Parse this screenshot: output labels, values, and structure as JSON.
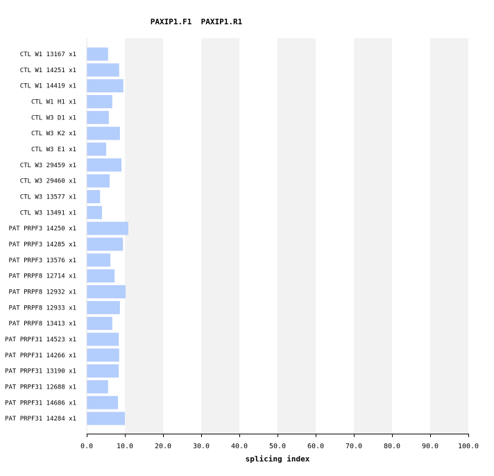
{
  "chart_data": {
    "type": "bar",
    "orientation": "horizontal",
    "title": "PAXIP1.F1  PAXIP1.R1",
    "xlabel": "splicing index",
    "ylabel": "",
    "xlim": [
      0,
      100
    ],
    "xticks": [
      "0.0",
      "10.0",
      "20.0",
      "30.0",
      "40.0",
      "50.0",
      "60.0",
      "70.0",
      "80.0",
      "90.0",
      "100.0"
    ],
    "grid": "alternating vertical bands every 10",
    "legend": "none",
    "colors": {
      "bar": "#b3cdfc",
      "band": "#f2f2f2"
    },
    "categories": [
      "CTL W1 13167 x1",
      "CTL W1 14251 x1",
      "CTL W1 14419 x1",
      "CTL W1 H1 x1",
      "CTL W3 D1 x1",
      "CTL W3 K2 x1",
      "CTL W3 E1 x1",
      "CTL W3 29459 x1",
      "CTL W3 29460 x1",
      "CTL W3 13577 x1",
      "CTL W3 13491 x1",
      "PAT PRPF3 14250 x1",
      "PAT PRPF3 14285 x1",
      "PAT PRPF3 13576 x1",
      "PAT PRPF8 12714 x1",
      "PAT PRPF8 12932 x1",
      "PAT PRPF8 12933 x1",
      "PAT PRPF8 13413 x1",
      "PAT PRPF31 14523 x1",
      "PAT PRPF31 14266 x1",
      "PAT PRPF31 13190 x1",
      "PAT PRPF31 12688 x1",
      "PAT PRPF31 14686 x1",
      "PAT PRPF31 14284 x1"
    ],
    "values": [
      5.6,
      8.5,
      9.6,
      6.7,
      5.8,
      8.7,
      5.1,
      9.1,
      6.0,
      3.5,
      4.0,
      10.9,
      9.5,
      6.2,
      7.3,
      10.2,
      8.7,
      6.7,
      8.4,
      8.5,
      8.4,
      5.6,
      8.2,
      10.0
    ]
  }
}
